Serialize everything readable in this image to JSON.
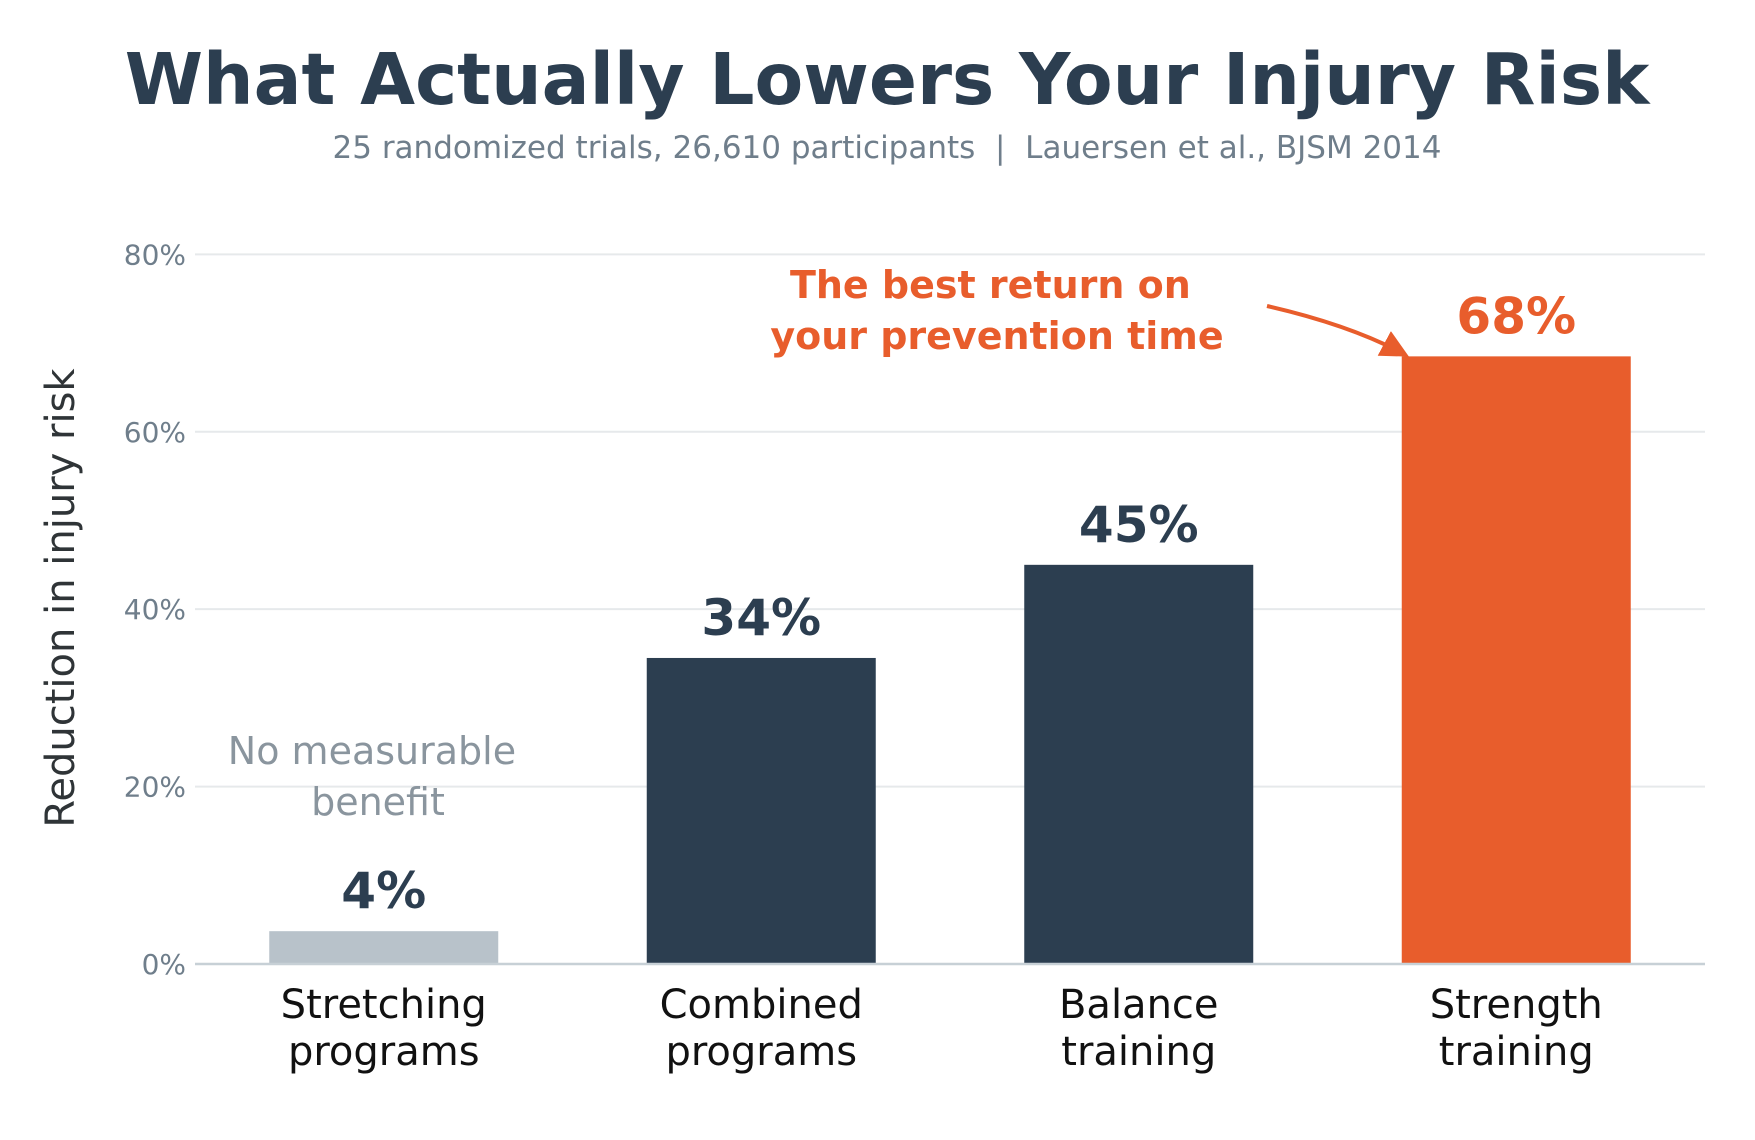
{
  "colors": {
    "dark": "#2c3e50",
    "muted": "#b8c2ca",
    "highlight": "#e85d2c",
    "grid": "#e6e9eb",
    "axis": "#c7d0d6"
  },
  "chart_data": {
    "type": "bar",
    "title": "What Actually Lowers Your Injury Risk",
    "subtitle": "25 randomized trials, 26,610 participants  |  Lauersen et al., BJSM 2014",
    "xlabel": "",
    "ylabel": "Reduction in injury risk",
    "ylim": [
      0,
      85
    ],
    "yticks": [
      0,
      20,
      40,
      60,
      80
    ],
    "ytick_labels": [
      "0%",
      "20%",
      "40%",
      "60%",
      "80%"
    ],
    "grid": true,
    "categories": [
      {
        "line1": "Stretching",
        "line2": "programs"
      },
      {
        "line1": "Combined",
        "line2": "programs"
      },
      {
        "line1": "Balance",
        "line2": "training"
      },
      {
        "line1": "Strength",
        "line2": "training"
      }
    ],
    "values": [
      3.7,
      34.5,
      45,
      68.5
    ],
    "value_labels": [
      "4%",
      "34%",
      "45%",
      "68%"
    ],
    "bar_colors": [
      "#b8c2ca",
      "#2c3e50",
      "#2c3e50",
      "#e85d2c"
    ],
    "label_colors": [
      "#2c3e50",
      "#2c3e50",
      "#2c3e50",
      "#e85d2c"
    ],
    "annotations": {
      "no_benefit": {
        "line1": "No measurable",
        "line2": "benefit"
      },
      "callout": {
        "line1": "The best return on",
        "line2": "your prevention time"
      }
    }
  }
}
